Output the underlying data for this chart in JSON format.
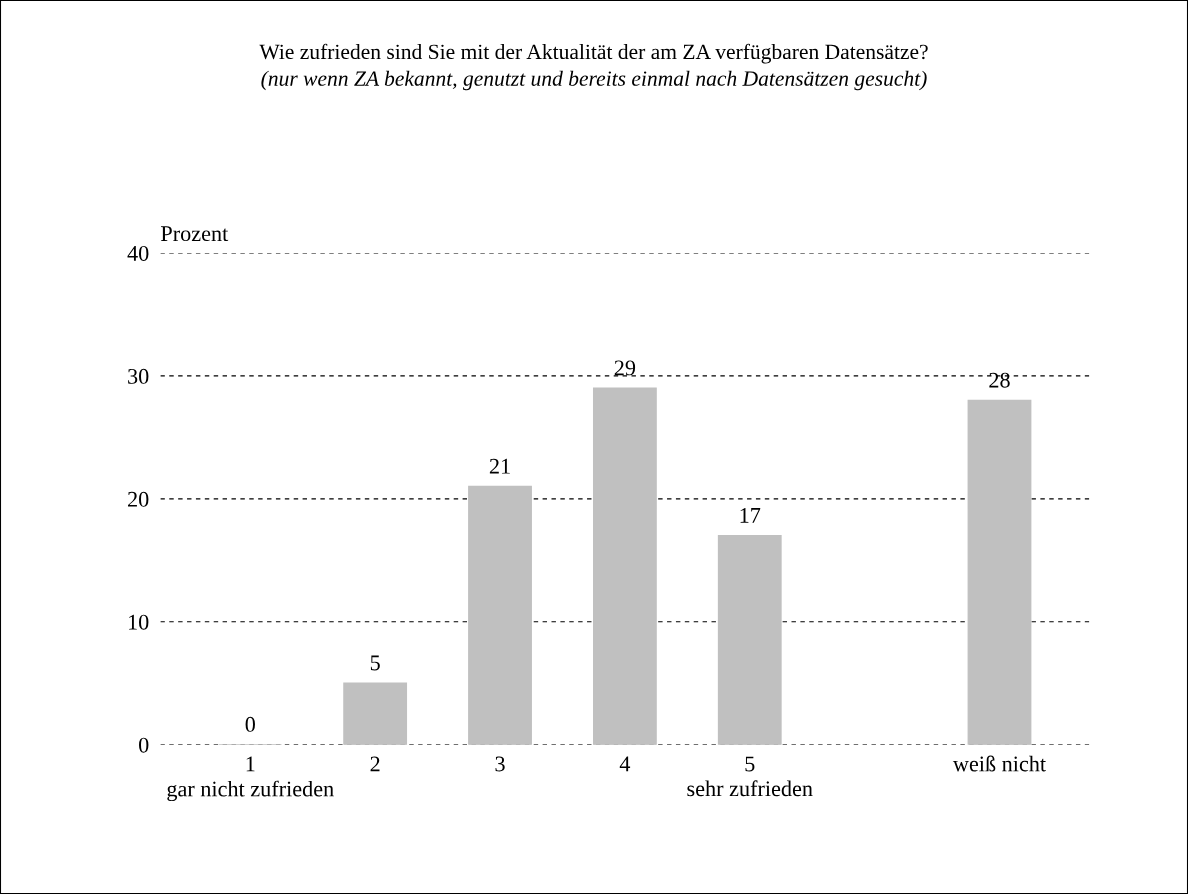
{
  "chart_data": {
    "type": "bar",
    "title": "Wie zufrieden sind Sie mit der Aktualität der am ZA verfügbaren Datensätze?",
    "subtitle": "(nur wenn ZA bekannt, genutzt und bereits einmal nach Datensätzen gesucht)",
    "ylabel": "Prozent",
    "categories": [
      "1\ngar nicht zufrieden",
      "2",
      "3",
      "4",
      "5\nsehr zufrieden",
      null,
      "weiß nicht"
    ],
    "values": [
      0,
      5,
      21,
      29,
      17,
      null,
      28
    ],
    "color": "#c0c0c0",
    "ylim": [
      0,
      40
    ],
    "yticks": [
      0,
      10,
      20,
      30,
      40
    ],
    "grid": "y",
    "line_style": "dashed",
    "data_labels": true,
    "legend": false
  }
}
